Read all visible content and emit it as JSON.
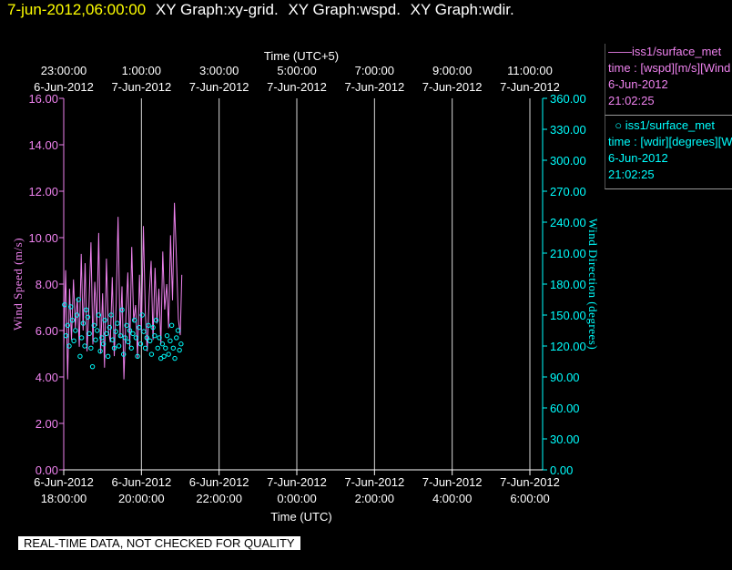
{
  "title": {
    "datetime": "7-jun-2012,06:00:00",
    "graphs": [
      "XY Graph:xy-grid.",
      "XY Graph:wspd.",
      "XY Graph:wdir."
    ]
  },
  "legend": [
    {
      "name": "iss1/surface_met",
      "symbol": "line",
      "lines": [
        "time : [wspd][m/s][Wind",
        "6-Jun-2012",
        "21:02:25"
      ],
      "color": "#ee82ee"
    },
    {
      "name": "iss1/surface_met",
      "symbol": "circle",
      "lines": [
        "time : [wdir][degrees][Wi",
        "6-Jun-2012",
        "21:02:25"
      ],
      "color": "#00ffff"
    }
  ],
  "quality_note": "REAL-TIME DATA, NOT CHECKED FOR QUALITY",
  "chart_data": {
    "type": "line",
    "grid": "vertical",
    "x_bottom": {
      "label": "Time (UTC)",
      "ticks": [
        {
          "date": "6-Jun-2012",
          "time": "18:00:00"
        },
        {
          "date": "6-Jun-2012",
          "time": "20:00:00"
        },
        {
          "date": "6-Jun-2012",
          "time": "22:00:00"
        },
        {
          "date": "7-Jun-2012",
          "time": "0:00:00"
        },
        {
          "date": "7-Jun-2012",
          "time": "2:00:00"
        },
        {
          "date": "7-Jun-2012",
          "time": "4:00:00"
        },
        {
          "date": "7-Jun-2012",
          "time": "6:00:00"
        }
      ],
      "range_utc_hours": [
        18,
        30
      ]
    },
    "x_top": {
      "label": "Time (UTC+5)",
      "ticks": [
        {
          "date": "6-Jun-2012",
          "time": "23:00:00"
        },
        {
          "date": "7-Jun-2012",
          "time": "1:00:00"
        },
        {
          "date": "7-Jun-2012",
          "time": "3:00:00"
        },
        {
          "date": "7-Jun-2012",
          "time": "5:00:00"
        },
        {
          "date": "7-Jun-2012",
          "time": "7:00:00"
        },
        {
          "date": "7-Jun-2012",
          "time": "9:00:00"
        },
        {
          "date": "7-Jun-2012",
          "time": "11:00:00"
        }
      ]
    },
    "y_left": {
      "label": "Wind Speed (m/s)",
      "ylim": [
        0,
        16
      ],
      "ticks": [
        "0.00",
        "2.00",
        "4.00",
        "6.00",
        "8.00",
        "10.00",
        "12.00",
        "14.00",
        "16.00"
      ]
    },
    "y_right": {
      "label": "Wind Direction (degrees)",
      "ylim": [
        0,
        360
      ],
      "ticks": [
        "0.00",
        "30.00",
        "60.00",
        "90.00",
        "120.00",
        "150.00",
        "180.00",
        "210.00",
        "240.00",
        "270.00",
        "300.00",
        "330.00",
        "360.00"
      ]
    },
    "series": [
      {
        "name": "iss1/surface_met wspd",
        "axis": "left",
        "style": "line",
        "color": "#ee82ee",
        "x_utc_hours": [
          18.0,
          18.05,
          18.1,
          18.15,
          18.2,
          18.25,
          18.3,
          18.35,
          18.4,
          18.45,
          18.5,
          18.55,
          18.6,
          18.65,
          18.7,
          18.75,
          18.8,
          18.85,
          18.9,
          18.95,
          19.0,
          19.05,
          19.1,
          19.15,
          19.2,
          19.25,
          19.3,
          19.35,
          19.4,
          19.45,
          19.5,
          19.55,
          19.6,
          19.65,
          19.7,
          19.75,
          19.8,
          19.85,
          19.9,
          19.95,
          20.0,
          20.05,
          20.1,
          20.15,
          20.2,
          20.25,
          20.3,
          20.35,
          20.4,
          20.45,
          20.5,
          20.55,
          20.6,
          20.65,
          20.7,
          20.75,
          20.8,
          20.85,
          20.9,
          20.95,
          21.0,
          21.04
        ],
        "values": [
          5.2,
          8.6,
          3.9,
          7.8,
          5.6,
          8.2,
          6.1,
          7.4,
          5.3,
          9.3,
          6.0,
          8.9,
          5.1,
          7.0,
          9.8,
          5.4,
          8.1,
          6.2,
          10.2,
          5.0,
          7.6,
          4.4,
          9.1,
          6.0,
          5.5,
          8.3,
          4.9,
          7.2,
          10.9,
          5.7,
          7.9,
          3.9,
          6.6,
          8.5,
          5.2,
          9.6,
          6.4,
          7.1,
          4.8,
          8.4,
          5.9,
          10.5,
          6.8,
          5.1,
          7.5,
          9.0,
          5.6,
          8.7,
          6.3,
          7.8,
          5.4,
          9.4,
          6.9,
          8.0,
          6.1,
          10.1,
          7.3,
          11.5,
          9.2,
          6.5,
          5.8,
          8.4
        ]
      },
      {
        "name": "iss1/surface_met wdir",
        "axis": "right",
        "style": "markers",
        "color": "#00ffff",
        "x_utc_hours": [
          18.02,
          18.06,
          18.1,
          18.14,
          18.18,
          18.22,
          18.26,
          18.3,
          18.34,
          18.38,
          18.42,
          18.46,
          18.5,
          18.54,
          18.58,
          18.62,
          18.66,
          18.7,
          18.74,
          18.78,
          18.82,
          18.86,
          18.9,
          18.94,
          18.98,
          19.02,
          19.06,
          19.1,
          19.14,
          19.18,
          19.22,
          19.26,
          19.3,
          19.34,
          19.38,
          19.42,
          19.46,
          19.5,
          19.54,
          19.58,
          19.62,
          19.66,
          19.7,
          19.74,
          19.78,
          19.82,
          19.86,
          19.9,
          19.94,
          19.98,
          20.02,
          20.06,
          20.1,
          20.14,
          20.18,
          20.22,
          20.26,
          20.3,
          20.34,
          20.38,
          20.42,
          20.46,
          20.5,
          20.54,
          20.58,
          20.62,
          20.66,
          20.7,
          20.74,
          20.78,
          20.82,
          20.86,
          20.9,
          20.94,
          20.98,
          21.02
        ],
        "values": [
          160,
          130,
          140,
          120,
          158,
          145,
          125,
          135,
          150,
          165,
          110,
          128,
          142,
          120,
          155,
          148,
          132,
          118,
          100,
          140,
          126,
          135,
          150,
          115,
          128,
          122,
          145,
          132,
          110,
          138,
          150,
          126,
          118,
          134,
          142,
          120,
          130,
          155,
          112,
          128,
          140,
          124,
          135,
          118,
          132,
          145,
          128,
          110,
          138,
          122,
          150,
          134,
          118,
          128,
          140,
          125,
          112,
          138,
          130,
          145,
          118,
          128,
          108,
          122,
          110,
          118,
          130,
          112,
          125,
          140,
          118,
          108,
          128,
          135,
          116,
          122
        ]
      }
    ]
  }
}
